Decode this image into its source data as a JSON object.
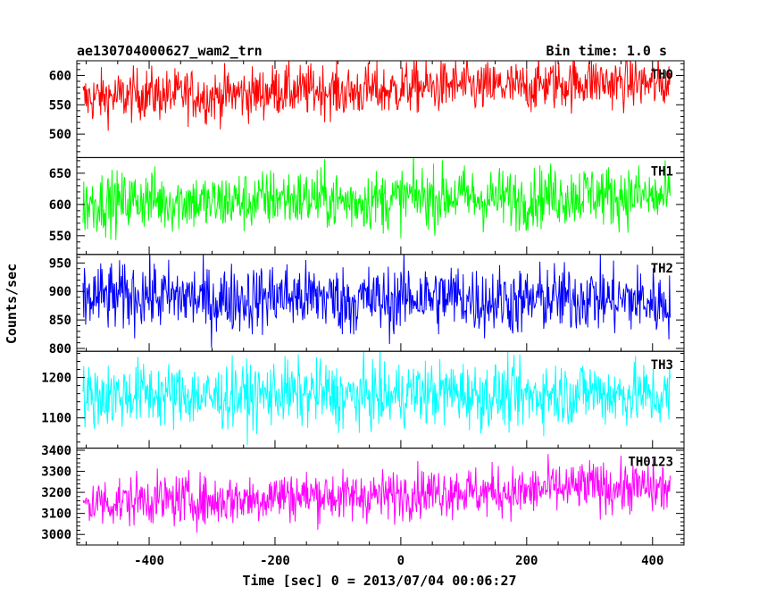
{
  "header": {
    "title": "ae130704000627_wam2_trn",
    "bin_time": "Bin time: 1.0 s"
  },
  "chart_data": {
    "type": "line",
    "title": "ae130704000627_wam2_trn",
    "xlabel": "Time [sec] 0 = 2013/07/04 00:06:27",
    "ylabel": "Counts/sec",
    "xlim": [
      -515,
      450
    ],
    "x_ticks": [
      -400,
      -200,
      0,
      200,
      400
    ],
    "x_range_data": [
      -505,
      428
    ],
    "grid": false,
    "panels": [
      {
        "name": "TH0",
        "color": "#ff0000",
        "ylim": [
          460,
          625
        ],
        "y_ticks": [
          500,
          550,
          600
        ],
        "mean_start": 562,
        "mean_end": 590,
        "amplitude": 22,
        "series": [
          {
            "name": "TH0"
          }
        ]
      },
      {
        "name": "TH1",
        "color": "#00ff00",
        "ylim": [
          520,
          675
        ],
        "y_ticks": [
          550,
          600,
          650
        ],
        "mean_start": 603,
        "mean_end": 615,
        "amplitude": 24,
        "series": [
          {
            "name": "TH1"
          }
        ]
      },
      {
        "name": "TH2",
        "color": "#0000ff",
        "ylim": [
          795,
          965
        ],
        "y_ticks": [
          800,
          850,
          900,
          950
        ],
        "mean_start": 890,
        "mean_end": 885,
        "amplitude": 30,
        "series": [
          {
            "name": "TH2"
          }
        ]
      },
      {
        "name": "TH3",
        "color": "#00ffff",
        "ylim": [
          1025,
          1265
        ],
        "y_ticks": [
          1100,
          1200
        ],
        "mean_start": 1155,
        "mean_end": 1160,
        "amplitude": 40,
        "series": [
          {
            "name": "TH3"
          }
        ]
      },
      {
        "name": "TH0123",
        "color": "#ff00ff",
        "ylim": [
          2950,
          3410
        ],
        "y_ticks": [
          3000,
          3100,
          3200,
          3300,
          3400
        ],
        "mean_start": 3150,
        "mean_end": 3230,
        "amplitude": 60,
        "series": [
          {
            "name": "TH0123"
          }
        ]
      }
    ]
  }
}
